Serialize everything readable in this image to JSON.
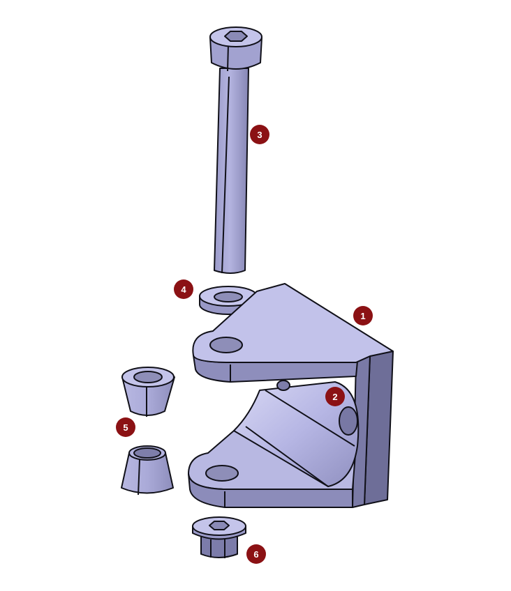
{
  "colors": {
    "part_light": "#c8c8ec",
    "part_mid": "#a8a8d8",
    "part_dark": "#7c7ca6",
    "part_darker": "#686890",
    "hole": "#8e8eb8",
    "edge": "#101018",
    "badge": "#8b1114",
    "badge_text": "#ffffff"
  },
  "callouts": [
    {
      "id": "callout-1",
      "label": "1"
    },
    {
      "id": "callout-2",
      "label": "2"
    },
    {
      "id": "callout-3",
      "label": "3"
    },
    {
      "id": "callout-4",
      "label": "4"
    },
    {
      "id": "callout-5",
      "label": "5"
    },
    {
      "id": "callout-6",
      "label": "6"
    }
  ]
}
